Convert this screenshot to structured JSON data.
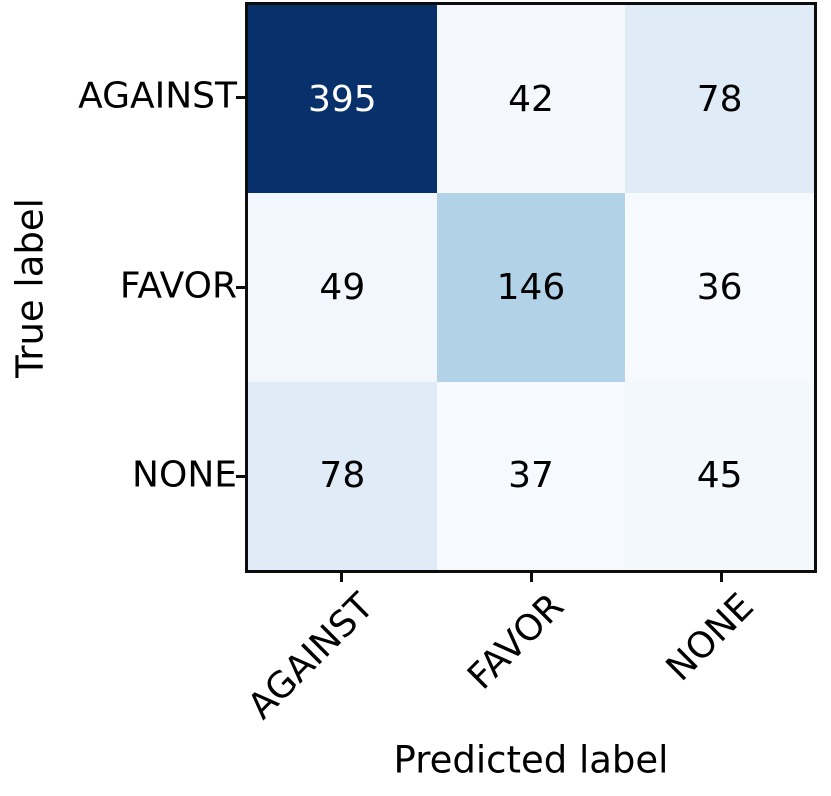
{
  "figure": {
    "kind": "confusion-matrix"
  },
  "chart_data": {
    "type": "heatmap",
    "title": "",
    "xlabel": "Predicted label",
    "ylabel": "True label",
    "row_labels": [
      "AGAINST",
      "FAVOR",
      "NONE"
    ],
    "col_labels": [
      "AGAINST",
      "FAVOR",
      "NONE"
    ],
    "matrix": [
      [
        395,
        42,
        78
      ],
      [
        49,
        146,
        36
      ],
      [
        78,
        37,
        45
      ]
    ],
    "colormap": "Blues",
    "value_range": [
      36,
      395
    ],
    "grid": false,
    "legend": "none",
    "cell_colors": [
      [
        "#08306b",
        "#f5f9fe",
        "#dfebf7"
      ],
      [
        "#f1f7fd",
        "#b2d2e8",
        "#f6fafe"
      ],
      [
        "#dfebf7",
        "#f6fafe",
        "#f3f8fd"
      ]
    ],
    "cell_text_colors": [
      [
        "#ffffff",
        "#000000",
        "#000000"
      ],
      [
        "#000000",
        "#000000",
        "#000000"
      ],
      [
        "#000000",
        "#000000",
        "#000000"
      ]
    ],
    "border_color": "#0d0d0d"
  }
}
